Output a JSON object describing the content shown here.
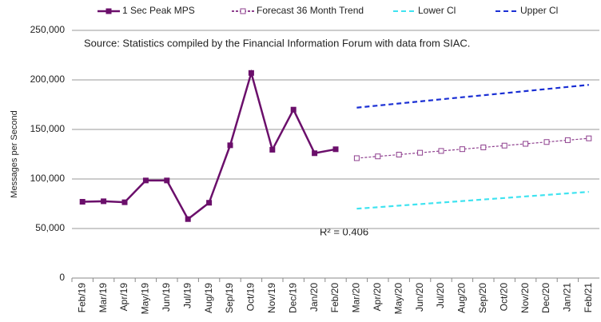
{
  "chart_data": {
    "type": "line",
    "annotations": [
      "Source: Statistics compiled by the Financial Information Forum with data from SIAC.",
      "R² = 0.406"
    ],
    "ylabel": "Messages per Second",
    "categories": [
      "Feb/19",
      "Mar/19",
      "Apr/19",
      "May/19",
      "Jun/19",
      "Jul/19",
      "Aug/19",
      "Sep/19",
      "Oct/19",
      "Nov/19",
      "Dec/19",
      "Jan/20",
      "Feb/20",
      "Mar/20",
      "Apr/20",
      "May/20",
      "Jun/20",
      "Jul/20",
      "Aug/20",
      "Sep/20",
      "Oct/20",
      "Nov/20",
      "Dec/20",
      "Jan/21",
      "Feb/21"
    ],
    "series": [
      {
        "name": "1 Sec Peak MPS",
        "color": "#6b0f6b",
        "style": "solid",
        "marker": "filled-square",
        "values": [
          77000,
          77500,
          76500,
          98500,
          98500,
          59500,
          76000,
          134000,
          207000,
          129500,
          170000,
          126000,
          130000,
          null,
          null,
          null,
          null,
          null,
          null,
          null,
          null,
          null,
          null,
          null,
          null
        ]
      },
      {
        "name": "Forecast 36 Month Trend",
        "color": "#8e3f8e",
        "style": "dotted",
        "marker": "open-square",
        "values": [
          null,
          null,
          null,
          null,
          null,
          null,
          null,
          null,
          null,
          null,
          null,
          null,
          null,
          121000,
          122800,
          124600,
          126500,
          128300,
          130100,
          131900,
          133700,
          135500,
          137300,
          139200,
          141000
        ]
      },
      {
        "name": "Lower Cl",
        "color": "#3fe3f0",
        "style": "dashed",
        "marker": "none",
        "values": [
          null,
          null,
          null,
          null,
          null,
          null,
          null,
          null,
          null,
          null,
          null,
          null,
          null,
          70000,
          71500,
          73100,
          74600,
          76200,
          77700,
          79300,
          80800,
          82400,
          83900,
          85500,
          87000
        ]
      },
      {
        "name": "Upper Cl",
        "color": "#1a2fd4",
        "style": "dashed",
        "marker": "none",
        "values": [
          null,
          null,
          null,
          null,
          null,
          null,
          null,
          null,
          null,
          null,
          null,
          null,
          null,
          172000,
          174100,
          176200,
          178300,
          180400,
          182500,
          184500,
          186600,
          188700,
          190800,
          192900,
          195000
        ]
      }
    ],
    "ylim": [
      0,
      250000
    ],
    "yticks": [
      0,
      {
        "value": 50000,
        "label": "50,000"
      },
      {
        "value": 100000,
        "label": "100,000"
      },
      {
        "value": 150000,
        "label": "150,000"
      },
      {
        "value": 200000,
        "label": "200,000"
      },
      {
        "value": 250000,
        "label": "250,000"
      }
    ],
    "grid": true,
    "legend": "top"
  }
}
